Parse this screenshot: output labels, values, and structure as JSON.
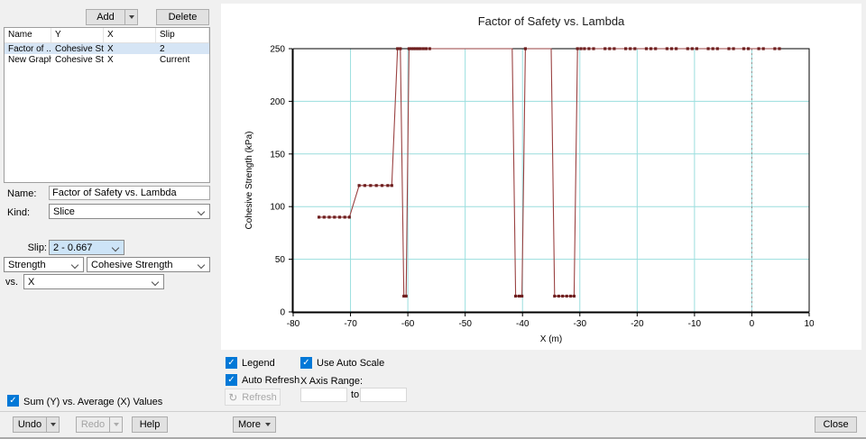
{
  "colors": {
    "accent": "#0078d7",
    "grid": "#9adede",
    "series_line": "#9a4242",
    "series_marker": "#6e1f1f",
    "selected_row": "#d6e5f5"
  },
  "left_panel": {
    "add_label": "Add",
    "delete_label": "Delete",
    "table": {
      "headers": [
        "Name",
        "Y",
        "X",
        "Slip"
      ],
      "rows": [
        [
          "Factor of ...",
          "Cohesive Str...",
          "X",
          "2"
        ],
        [
          "New Graph",
          "Cohesive Str...",
          "X",
          "Current"
        ]
      ],
      "selected_index": 0
    },
    "name_label": "Name:",
    "name_value": "Factor of Safety vs. Lambda",
    "kind_label": "Kind:",
    "kind_value": "Slice",
    "slip_label": "Slip:",
    "slip_value": "2 - 0.667",
    "strength_value": "Strength",
    "cohesive_strength_value": "Cohesive Strength",
    "vs_label": "vs.",
    "vs_value": "X",
    "sum_avg_label": "Sum (Y) vs. Average (X) Values",
    "sum_avg_checked": true
  },
  "chart_controls": {
    "legend_label": "Legend",
    "legend_checked": true,
    "auto_refresh_label": "Auto Refresh",
    "auto_refresh_checked": true,
    "use_auto_scale_label": "Use Auto Scale",
    "use_auto_scale_checked": true,
    "x_axis_range_label": "X Axis Range:",
    "range_from_value": "",
    "range_to_value": "",
    "to_label": "to",
    "refresh_label": "Refresh"
  },
  "footer": {
    "undo_label": "Undo",
    "redo_label": "Redo",
    "help_label": "Help",
    "more_label": "More",
    "close_label": "Close"
  },
  "chart_data": {
    "type": "line",
    "title": "Factor of Safety vs. Lambda",
    "xlabel": "X (m)",
    "ylabel": "Cohesive Strength (kPa)",
    "xlim": [
      -80,
      10
    ],
    "ylim": [
      0,
      250
    ],
    "x_ticks": [
      -80,
      -70,
      -60,
      -50,
      -40,
      -30,
      -20,
      -10,
      0,
      10
    ],
    "y_ticks": [
      0,
      50,
      100,
      150,
      200,
      250
    ],
    "grid": true,
    "legend_position": "none",
    "reference_line_x": 0,
    "points": [
      [
        -75.5,
        90,
        1
      ],
      [
        -74.6,
        90,
        1
      ],
      [
        -73.7,
        90,
        1
      ],
      [
        -72.8,
        90,
        1
      ],
      [
        -71.9,
        90,
        1
      ],
      [
        -71,
        90,
        1
      ],
      [
        -70.2,
        90,
        1
      ],
      [
        -68.5,
        120,
        1
      ],
      [
        -67.5,
        120,
        1
      ],
      [
        -66.5,
        120,
        1
      ],
      [
        -65.5,
        120,
        1
      ],
      [
        -64.5,
        120,
        1
      ],
      [
        -63.5,
        120,
        1
      ],
      [
        -62.8,
        120,
        1
      ],
      [
        -61.8,
        250,
        1
      ],
      [
        -61.3,
        250,
        1
      ],
      [
        -60.7,
        15,
        1
      ],
      [
        -60.3,
        15,
        1
      ],
      [
        -59.8,
        250,
        1
      ],
      [
        -59.4,
        250,
        1
      ],
      [
        -59,
        250,
        1
      ],
      [
        -58.6,
        250,
        1
      ],
      [
        -58.2,
        250,
        1
      ],
      [
        -57.8,
        250,
        1
      ],
      [
        -57.3,
        250,
        1
      ],
      [
        -56.8,
        250,
        1
      ],
      [
        -56.2,
        250,
        1
      ],
      [
        -54,
        250,
        0
      ],
      [
        -50,
        250,
        0
      ],
      [
        -46,
        250,
        0
      ],
      [
        -43,
        250,
        0
      ],
      [
        -41.8,
        250,
        0
      ],
      [
        -41.2,
        15,
        1
      ],
      [
        -40.6,
        15,
        1
      ],
      [
        -40.1,
        15,
        1
      ],
      [
        -39.5,
        250,
        1
      ],
      [
        -38.8,
        250,
        0
      ],
      [
        -37.8,
        250,
        0
      ],
      [
        -36.8,
        250,
        0
      ],
      [
        -35.8,
        250,
        0
      ],
      [
        -35,
        250,
        0
      ],
      [
        -34.4,
        15,
        1
      ],
      [
        -33.7,
        15,
        1
      ],
      [
        -33,
        15,
        1
      ],
      [
        -32.3,
        15,
        1
      ],
      [
        -31.6,
        15,
        1
      ],
      [
        -31,
        15,
        1
      ],
      [
        -30.4,
        250,
        1
      ],
      [
        -29.8,
        250,
        1
      ],
      [
        -29.2,
        250,
        1
      ],
      [
        -28.4,
        250,
        1
      ],
      [
        -27.6,
        250,
        1
      ],
      [
        -26.6,
        250,
        0
      ],
      [
        -25.6,
        250,
        1
      ],
      [
        -24.8,
        250,
        1
      ],
      [
        -24,
        250,
        1
      ],
      [
        -23,
        250,
        0
      ],
      [
        -22,
        250,
        1
      ],
      [
        -21.2,
        250,
        1
      ],
      [
        -20.4,
        250,
        1
      ],
      [
        -19.4,
        250,
        0
      ],
      [
        -18.4,
        250,
        1
      ],
      [
        -17.6,
        250,
        1
      ],
      [
        -16.8,
        250,
        1
      ],
      [
        -15.8,
        250,
        0
      ],
      [
        -14.8,
        250,
        1
      ],
      [
        -14,
        250,
        1
      ],
      [
        -13.2,
        250,
        1
      ],
      [
        -12.2,
        250,
        0
      ],
      [
        -11.2,
        250,
        1
      ],
      [
        -10.4,
        250,
        1
      ],
      [
        -9.6,
        250,
        1
      ],
      [
        -8.6,
        250,
        0
      ],
      [
        -7.6,
        250,
        1
      ],
      [
        -6.8,
        250,
        1
      ],
      [
        -6,
        250,
        1
      ],
      [
        -5,
        250,
        0
      ],
      [
        -4,
        250,
        1
      ],
      [
        -3.2,
        250,
        1
      ],
      [
        -2.4,
        250,
        0
      ],
      [
        -1.4,
        250,
        1
      ],
      [
        -0.6,
        250,
        1
      ],
      [
        0.2,
        250,
        0
      ],
      [
        1.2,
        250,
        1
      ],
      [
        2,
        250,
        1
      ],
      [
        3,
        250,
        0
      ],
      [
        4,
        250,
        1
      ],
      [
        4.8,
        250,
        1
      ]
    ]
  }
}
